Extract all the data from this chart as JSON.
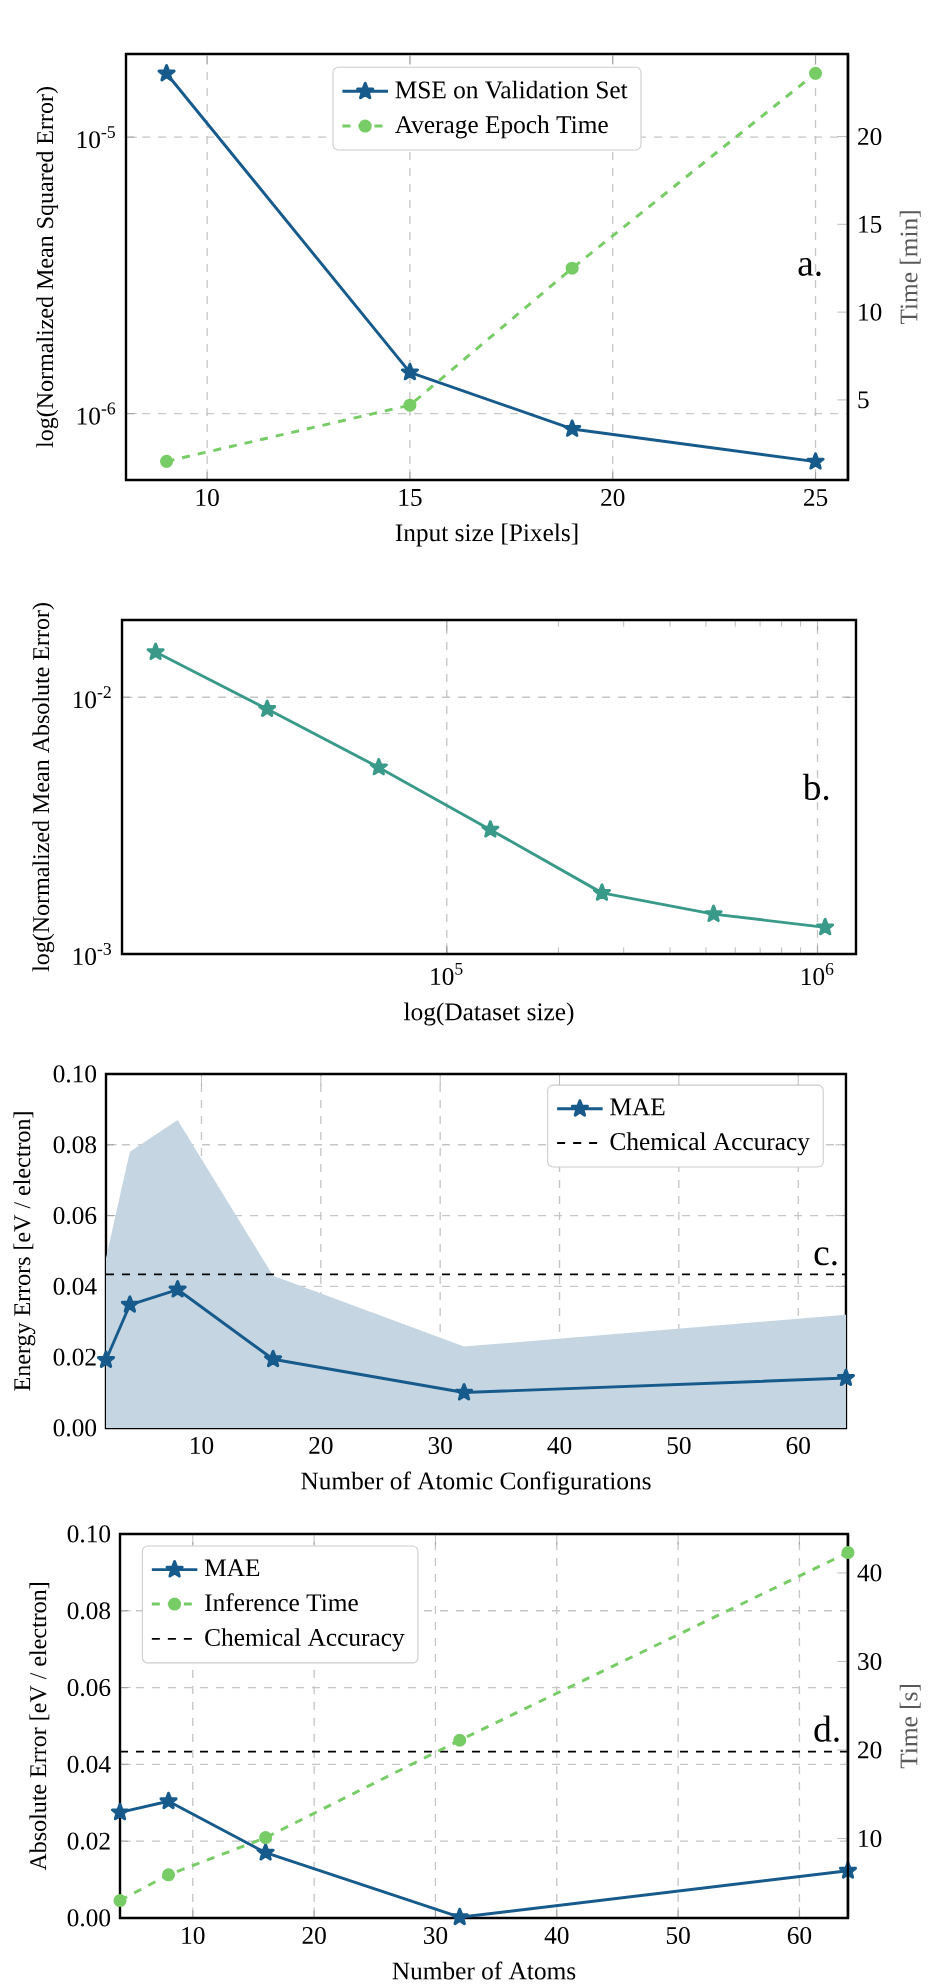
{
  "chart_data": [
    {
      "type": "line",
      "xlabel": "Input size [Pixels]",
      "ylabel": "log(Normalized Mean Squared Error)",
      "y2label": "Time [min]",
      "annotations": [
        "a."
      ],
      "x": [
        9,
        15,
        19,
        25
      ],
      "series": [
        {
          "name": "MSE on Validation Set",
          "color": "#175a8c",
          "values": [
            1.7e-05,
            1.41e-06,
            8.8e-07,
            6.7e-07
          ],
          "marker": "star",
          "line_style": "solid"
        },
        {
          "name": "Average Epoch Time",
          "color": "#77cc66",
          "values": [
            1.5,
            4.7,
            12.5,
            23.6
          ],
          "axis": "y2",
          "marker": "circle",
          "line_style": "dashed"
        }
      ],
      "xlim": [
        8,
        25.8
      ],
      "xticks": [
        10,
        15,
        20,
        25
      ],
      "ylim": [
        5.75e-07,
        2e-05
      ],
      "yticks": [
        {
          "value": 1e-05,
          "label": "10$^{-5}$"
        },
        {
          "value": 1e-06,
          "label": "10$^{-6}$"
        }
      ],
      "y2lim": [
        0.44,
        24.7
      ],
      "y2ticks": [
        5,
        10,
        15,
        20
      ],
      "log": "y",
      "grid": true,
      "legend": "top"
    },
    {
      "type": "line",
      "xlabel": "log(Dataset size)",
      "ylabel": "log(Normalized Mean Absolute Error)",
      "annotations": [
        "b."
      ],
      "x": [
        16384,
        32768,
        65536,
        131072,
        262144,
        524288,
        1048576
      ],
      "series": [
        {
          "color": "#3a9a8a",
          "values": [
            0.015,
            0.009,
            0.00533,
            0.00305,
            0.00173,
            0.00143,
            0.00127
          ],
          "marker": "star",
          "line_style": "solid"
        }
      ],
      "xlim": [
        13300,
        1270000
      ],
      "xticks": [
        {
          "value": 100000,
          "label": "10$^{5}$"
        },
        {
          "value": 1000000,
          "label": "10$^{6}$"
        }
      ],
      "ylim": [
        0.001,
        0.02
      ],
      "yticks": [
        {
          "value": 0.01,
          "label": "10$^{-2}$"
        },
        {
          "value": 0.001,
          "label": "10$^{-3}$"
        }
      ],
      "log": "xy",
      "grid": true
    },
    {
      "type": "line",
      "xlabel": "Number of Atomic Configurations",
      "ylabel": "Energy Errors [eV / electron]",
      "annotations": [
        "c."
      ],
      "x": [
        2,
        4,
        8,
        16,
        32,
        64
      ],
      "series": [
        {
          "name": "MAE",
          "color": "#175a8c",
          "values": [
            0.0192,
            0.0348,
            0.0391,
            0.0194,
            0.01,
            0.0141
          ],
          "lower": [
            0,
            0,
            0,
            0,
            0,
            0
          ],
          "upper": [
            0.048,
            0.078,
            0.087,
            0.043,
            0.023,
            0.032
          ],
          "marker": "star",
          "line_style": "solid"
        }
      ],
      "xlim": [
        2,
        64
      ],
      "xticks": [
        10,
        20,
        30,
        40,
        50,
        60
      ],
      "ylim": [
        0,
        0.1
      ],
      "yticks": [
        {
          "value": 0,
          "label": "0.00"
        },
        {
          "value": 0.02,
          "label": "0.02"
        },
        {
          "value": 0.04,
          "label": "0.04"
        },
        {
          "value": 0.06,
          "label": "0.06"
        },
        {
          "value": 0.08,
          "label": "0.08"
        },
        {
          "value": 0.1,
          "label": "0.10"
        }
      ],
      "ref_lines": [
        {
          "axis": "y",
          "value": 0.0434,
          "label": "Chemical Accuracy",
          "color": "#000000",
          "line_style": "dashed"
        }
      ],
      "grid": true,
      "legend": "top right"
    },
    {
      "type": "line",
      "xlabel": "Number of Atoms",
      "ylabel": "Absolute Error [eV / electron]",
      "y2label": "Time [s]",
      "annotations": [
        "d."
      ],
      "x": [
        4,
        8,
        16,
        32,
        64
      ],
      "series": [
        {
          "name": "MAE",
          "color": "#175a8c",
          "values": [
            0.0275,
            0.0304,
            0.017,
            0.0002,
            0.0123
          ],
          "marker": "star",
          "line_style": "solid"
        },
        {
          "name": "Inference Time",
          "color": "#77cc66",
          "values": [
            3.0,
            5.9,
            10.1,
            21.1,
            42.3
          ],
          "axis": "y2",
          "marker": "circle",
          "line_style": "dashed"
        }
      ],
      "xlim": [
        4,
        64
      ],
      "xticks": [
        10,
        20,
        30,
        40,
        50,
        60
      ],
      "ylim": [
        0,
        0.1
      ],
      "yticks": [
        {
          "value": 0,
          "label": "0.00"
        },
        {
          "value": 0.02,
          "label": "0.02"
        },
        {
          "value": 0.04,
          "label": "0.04"
        },
        {
          "value": 0.06,
          "label": "0.06"
        },
        {
          "value": 0.08,
          "label": "0.08"
        },
        {
          "value": 0.1,
          "label": "0.10"
        }
      ],
      "y2lim": [
        1.03,
        44.4
      ],
      "y2ticks": [
        10,
        20,
        30,
        40
      ],
      "ref_lines": [
        {
          "axis": "y",
          "value": 0.0433,
          "label": "Chemical Accuracy",
          "color": "#000000",
          "line_style": "dashed"
        }
      ],
      "grid": true,
      "legend": "top left"
    }
  ]
}
